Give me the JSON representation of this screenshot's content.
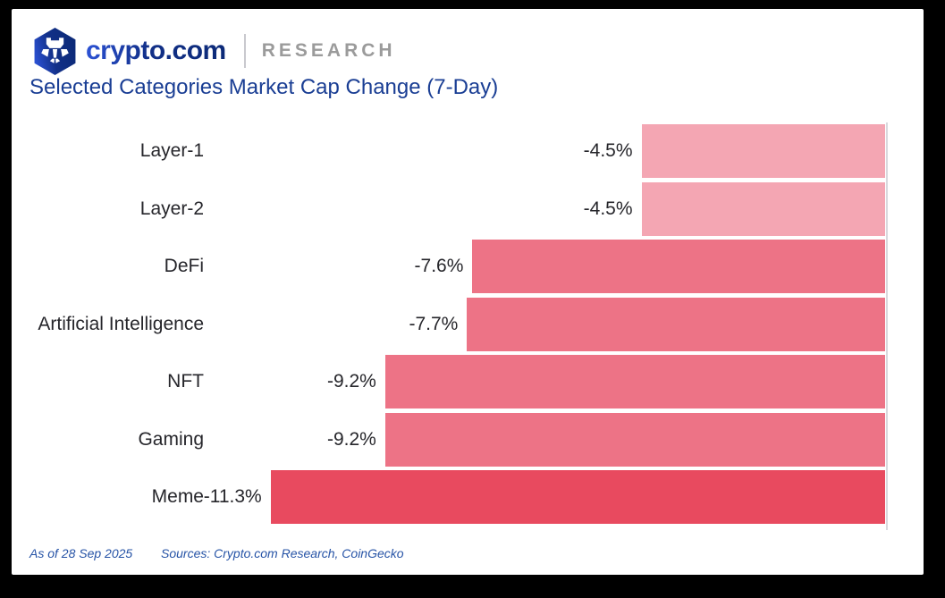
{
  "page": {
    "background": "#000000",
    "card_background": "#FFFFFF"
  },
  "header": {
    "brand": "crypto.com",
    "brand_suffix": "RESEARCH",
    "logo_icon": "crypto-com-hexagon-lion-logo",
    "brand_gradient_start": "#2C52D5",
    "brand_gradient_end": "#0C2A78",
    "research_color": "#9B9B9B"
  },
  "title": {
    "text": "Selected Categories Market Cap Change (7-Day)",
    "color": "#1A3E94"
  },
  "chart_data": {
    "type": "bar",
    "orientation": "horizontal",
    "baseline": "right",
    "title": "Selected Categories Market Cap Change (7-Day)",
    "categories": [
      "Layer-1",
      "Layer-2",
      "DeFi",
      "Artificial Intelligence",
      "NFT",
      "Gaming",
      "Meme"
    ],
    "values": [
      -4.5,
      -4.5,
      -7.6,
      -7.7,
      -9.2,
      -9.2,
      -11.3
    ],
    "value_labels": [
      "-4.5%",
      "-4.5%",
      "-7.6%",
      "-7.7%",
      "-9.2%",
      "-9.2%",
      "-11.3%"
    ],
    "bar_colors": [
      "#F4A6B3",
      "#F4A6B3",
      "#ED7386",
      "#ED7386",
      "#ED7386",
      "#ED7386",
      "#E84A5F"
    ],
    "axis_line_color": "#D9D9DE",
    "label_color": "#26262B",
    "xlim": [
      -12,
      0
    ],
    "grid": false,
    "legend": false
  },
  "footer": {
    "as_of": "As of 28 Sep 2025",
    "sources": "Sources: Crypto.com Research, CoinGecko",
    "color": "#2653A6"
  }
}
